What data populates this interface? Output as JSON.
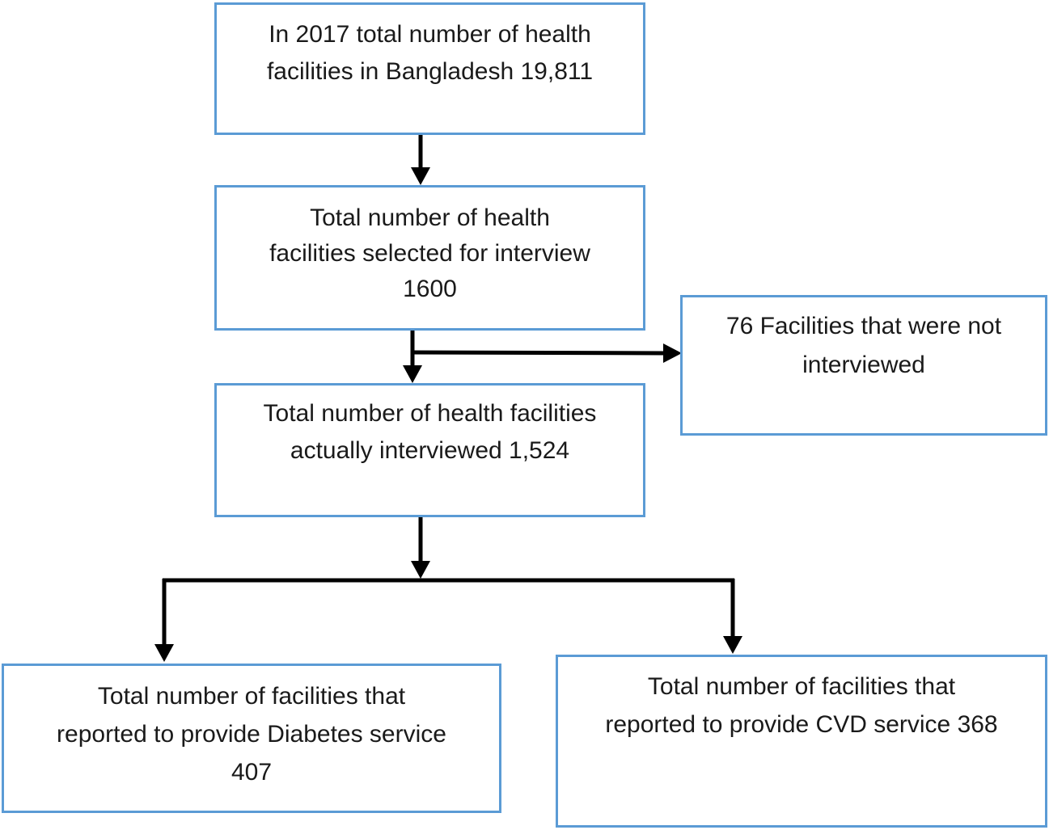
{
  "flowchart": {
    "total_facilities": {
      "lines": [
        "In 2017 total number of health",
        "facilities in Bangladesh 19,811"
      ]
    },
    "selected_for_interview": {
      "lines": [
        "Total number of health",
        "facilities selected for interview",
        "1600"
      ]
    },
    "not_interviewed": {
      "lines": [
        "76 Facilities that were not",
        "interviewed"
      ]
    },
    "actually_interviewed": {
      "lines": [
        "Total number of health facilities",
        "actually interviewed 1,524"
      ]
    },
    "diabetes_service": {
      "lines": [
        "Total number of facilities that",
        "reported to provide Diabetes service",
        "407"
      ]
    },
    "cvd_service": {
      "lines": [
        "Total number of facilities that",
        "reported to provide CVD service 368"
      ]
    }
  },
  "colors": {
    "box_border": "#5b9bd5",
    "arrow": "#000000",
    "text": "#1a1a1a"
  }
}
